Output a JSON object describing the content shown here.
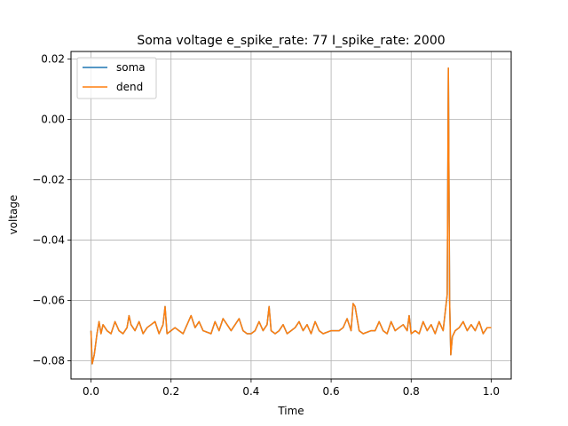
{
  "chart_data": {
    "type": "line",
    "title": "Soma voltage e_spike_rate: 77 I_spike_rate: 2000",
    "xlabel": "Time",
    "ylabel": "voltage",
    "xlim": [
      -0.05,
      1.05
    ],
    "ylim": [
      -0.086,
      0.0225
    ],
    "xticks": [
      0.0,
      0.2,
      0.4,
      0.6,
      0.8,
      1.0
    ],
    "xtick_labels": [
      "0.0",
      "0.2",
      "0.4",
      "0.6",
      "0.8",
      "1.0"
    ],
    "yticks": [
      0.02,
      0.0,
      -0.02,
      -0.04,
      -0.06,
      -0.08
    ],
    "ytick_labels": [
      "0.02",
      "0.00",
      "−0.02",
      "−0.04",
      "−0.06",
      "−0.08"
    ],
    "grid": true,
    "legend_position": "top-left",
    "series": [
      {
        "name": "soma",
        "color": "#1f77b4",
        "x": [
          0.0,
          0.003,
          0.008,
          0.015,
          0.02,
          0.025,
          0.03,
          0.04,
          0.05,
          0.06,
          0.07,
          0.08,
          0.09,
          0.095,
          0.1,
          0.11,
          0.12,
          0.13,
          0.14,
          0.15,
          0.16,
          0.17,
          0.18,
          0.185,
          0.19,
          0.2,
          0.21,
          0.22,
          0.23,
          0.25,
          0.26,
          0.27,
          0.28,
          0.3,
          0.31,
          0.32,
          0.33,
          0.34,
          0.35,
          0.36,
          0.37,
          0.38,
          0.39,
          0.4,
          0.41,
          0.42,
          0.43,
          0.44,
          0.445,
          0.45,
          0.46,
          0.47,
          0.48,
          0.49,
          0.5,
          0.51,
          0.52,
          0.53,
          0.54,
          0.55,
          0.56,
          0.57,
          0.58,
          0.6,
          0.62,
          0.63,
          0.64,
          0.65,
          0.655,
          0.66,
          0.67,
          0.68,
          0.7,
          0.71,
          0.72,
          0.73,
          0.74,
          0.75,
          0.76,
          0.77,
          0.78,
          0.79,
          0.795,
          0.8,
          0.81,
          0.82,
          0.83,
          0.84,
          0.85,
          0.86,
          0.87,
          0.88,
          0.89,
          0.893,
          0.896,
          0.899,
          0.903,
          0.91,
          0.92,
          0.93,
          0.94,
          0.95,
          0.96,
          0.97,
          0.98,
          0.99,
          1.0
        ],
        "y": [
          -0.07,
          -0.081,
          -0.078,
          -0.071,
          -0.067,
          -0.071,
          -0.068,
          -0.07,
          -0.071,
          -0.067,
          -0.07,
          -0.071,
          -0.069,
          -0.065,
          -0.068,
          -0.07,
          -0.067,
          -0.071,
          -0.069,
          -0.068,
          -0.067,
          -0.071,
          -0.068,
          -0.062,
          -0.071,
          -0.07,
          -0.069,
          -0.07,
          -0.071,
          -0.065,
          -0.069,
          -0.067,
          -0.07,
          -0.071,
          -0.067,
          -0.07,
          -0.066,
          -0.068,
          -0.07,
          -0.068,
          -0.066,
          -0.07,
          -0.071,
          -0.071,
          -0.07,
          -0.067,
          -0.07,
          -0.068,
          -0.062,
          -0.07,
          -0.071,
          -0.07,
          -0.068,
          -0.071,
          -0.07,
          -0.069,
          -0.067,
          -0.07,
          -0.068,
          -0.071,
          -0.067,
          -0.07,
          -0.071,
          -0.07,
          -0.07,
          -0.069,
          -0.066,
          -0.07,
          -0.061,
          -0.062,
          -0.07,
          -0.071,
          -0.07,
          -0.07,
          -0.067,
          -0.07,
          -0.071,
          -0.067,
          -0.07,
          -0.069,
          -0.068,
          -0.07,
          -0.065,
          -0.071,
          -0.07,
          -0.071,
          -0.067,
          -0.07,
          -0.068,
          -0.071,
          -0.067,
          -0.07,
          -0.058,
          0.017,
          -0.06,
          -0.078,
          -0.072,
          -0.07,
          -0.069,
          -0.067,
          -0.07,
          -0.068,
          -0.07,
          -0.067,
          -0.071,
          -0.069,
          -0.069
        ]
      },
      {
        "name": "dend",
        "color": "#ff7f0e",
        "x": [
          0.0,
          0.003,
          0.008,
          0.015,
          0.02,
          0.025,
          0.03,
          0.04,
          0.05,
          0.06,
          0.07,
          0.08,
          0.09,
          0.095,
          0.1,
          0.11,
          0.12,
          0.13,
          0.14,
          0.15,
          0.16,
          0.17,
          0.18,
          0.185,
          0.19,
          0.2,
          0.21,
          0.22,
          0.23,
          0.25,
          0.26,
          0.27,
          0.28,
          0.3,
          0.31,
          0.32,
          0.33,
          0.34,
          0.35,
          0.36,
          0.37,
          0.38,
          0.39,
          0.4,
          0.41,
          0.42,
          0.43,
          0.44,
          0.445,
          0.45,
          0.46,
          0.47,
          0.48,
          0.49,
          0.5,
          0.51,
          0.52,
          0.53,
          0.54,
          0.55,
          0.56,
          0.57,
          0.58,
          0.6,
          0.62,
          0.63,
          0.64,
          0.65,
          0.655,
          0.66,
          0.67,
          0.68,
          0.7,
          0.71,
          0.72,
          0.73,
          0.74,
          0.75,
          0.76,
          0.77,
          0.78,
          0.79,
          0.795,
          0.8,
          0.81,
          0.82,
          0.83,
          0.84,
          0.85,
          0.86,
          0.87,
          0.88,
          0.89,
          0.893,
          0.896,
          0.899,
          0.903,
          0.91,
          0.92,
          0.93,
          0.94,
          0.95,
          0.96,
          0.97,
          0.98,
          0.99,
          1.0
        ],
        "y": [
          -0.07,
          -0.081,
          -0.078,
          -0.071,
          -0.067,
          -0.071,
          -0.068,
          -0.07,
          -0.071,
          -0.067,
          -0.07,
          -0.071,
          -0.069,
          -0.065,
          -0.068,
          -0.07,
          -0.067,
          -0.071,
          -0.069,
          -0.068,
          -0.067,
          -0.071,
          -0.068,
          -0.062,
          -0.071,
          -0.07,
          -0.069,
          -0.07,
          -0.071,
          -0.065,
          -0.069,
          -0.067,
          -0.07,
          -0.071,
          -0.067,
          -0.07,
          -0.066,
          -0.068,
          -0.07,
          -0.068,
          -0.066,
          -0.07,
          -0.071,
          -0.071,
          -0.07,
          -0.067,
          -0.07,
          -0.068,
          -0.062,
          -0.07,
          -0.071,
          -0.07,
          -0.068,
          -0.071,
          -0.07,
          -0.069,
          -0.067,
          -0.07,
          -0.068,
          -0.071,
          -0.067,
          -0.07,
          -0.071,
          -0.07,
          -0.07,
          -0.069,
          -0.066,
          -0.07,
          -0.061,
          -0.062,
          -0.07,
          -0.071,
          -0.07,
          -0.07,
          -0.067,
          -0.07,
          -0.071,
          -0.067,
          -0.07,
          -0.069,
          -0.068,
          -0.07,
          -0.065,
          -0.071,
          -0.07,
          -0.071,
          -0.067,
          -0.07,
          -0.068,
          -0.071,
          -0.067,
          -0.07,
          -0.058,
          0.017,
          -0.06,
          -0.078,
          -0.072,
          -0.07,
          -0.069,
          -0.067,
          -0.07,
          -0.068,
          -0.07,
          -0.067,
          -0.071,
          -0.069,
          -0.069
        ]
      }
    ]
  }
}
